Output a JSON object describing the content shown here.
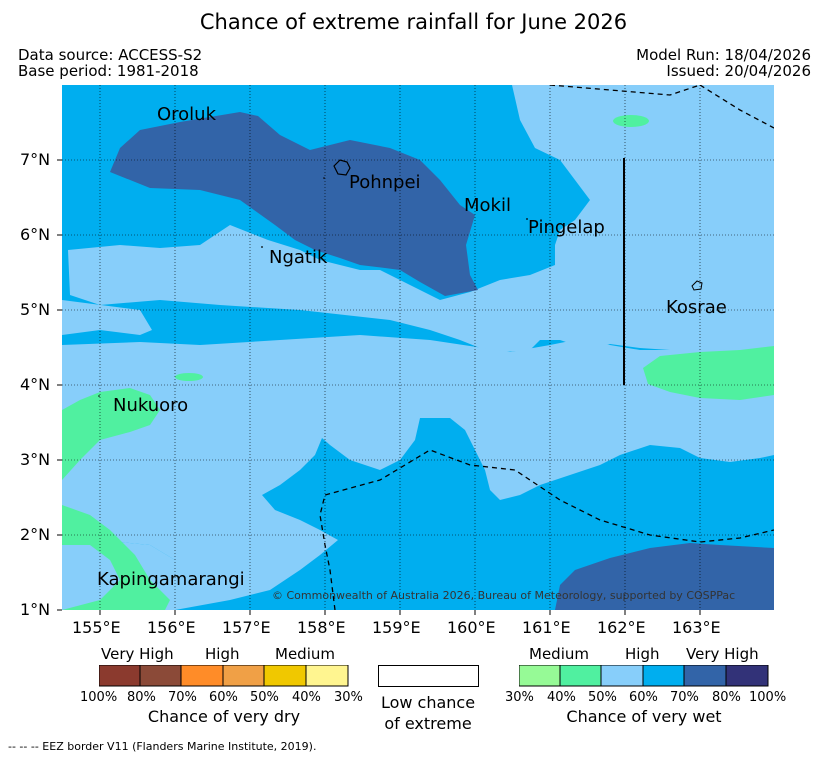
{
  "title": "Chance of extreme rainfall for June 2026",
  "header": {
    "data_source": "Data source: ACCESS-S2",
    "base_period": "Base period: 1981-2018",
    "model_run": "Model Run: 18/04/2026",
    "issued": "Issued: 20/04/2026"
  },
  "map": {
    "lon_labels": [
      "155°E",
      "156°E",
      "157°E",
      "158°E",
      "159°E",
      "160°E",
      "161°E",
      "162°E",
      "163°E"
    ],
    "lat_labels": [
      "7°N",
      "6°N",
      "5°N",
      "4°N",
      "3°N",
      "2°N",
      "1°N"
    ],
    "places": {
      "oroluk": "Oroluk",
      "pohnpei": "Pohnpei",
      "mokil": "Mokil",
      "pingelap": "Pingelap",
      "ngatik": "Ngatik",
      "kosrae": "Kosrae",
      "nukuoro": "Nukuoro",
      "kapingamarangi": "Kapingamarangi"
    },
    "copyright": "© Commonwealth of Australia 2026, Bureau of Meteorology, supported by COSPPac",
    "colors": {
      "wet_high": "#00AEEF",
      "wet_medium_high": "#87CEFA",
      "wet_very_high": "#3264A8",
      "wet_medium": "#50F0A0"
    }
  },
  "legend": {
    "dry": {
      "categories": [
        "Very High",
        "High",
        "Medium"
      ],
      "percents": [
        "100%",
        "80%",
        "70%",
        "60%",
        "50%",
        "40%",
        "30%"
      ],
      "title": "Chance of very dry",
      "colors": [
        "#8B3A2E",
        "#8B4A38",
        "#FF8C28",
        "#F0A046",
        "#F0C800",
        "#FFF590"
      ]
    },
    "low": {
      "line1": "Low chance",
      "line2": "of extreme"
    },
    "wet": {
      "categories": [
        "Medium",
        "High",
        "Very High"
      ],
      "percents": [
        "30%",
        "40%",
        "50%",
        "60%",
        "70%",
        "80%",
        "100%"
      ],
      "title": "Chance of very wet",
      "colors": [
        "#96FA96",
        "#50F0A0",
        "#87CEFA",
        "#00AEEF",
        "#3264A8",
        "#323278"
      ]
    }
  },
  "footer": "--  --  -- EEZ border V11 (Flanders Marine Institute, 2019)."
}
